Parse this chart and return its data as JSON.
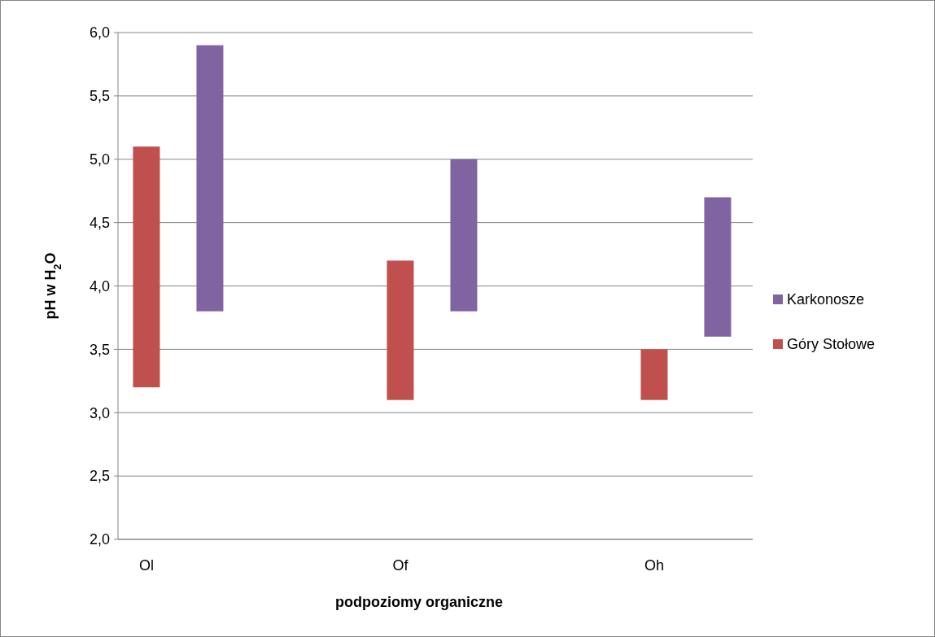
{
  "chart_data": {
    "type": "bar",
    "xlabel": "podpoziomy organiczne",
    "ylabel": "pH w H$_{2}$O",
    "categories": [
      "Ol",
      "Of",
      "Oh"
    ],
    "series": [
      {
        "name": "Góry Stołowe",
        "color": "#c0504d",
        "base": [
          3.2,
          3.1,
          3.1
        ],
        "values": [
          1.9,
          1.1,
          0.4
        ]
      },
      {
        "name": "Karkonosze",
        "color": "#8064a2",
        "base": [
          3.8,
          3.8,
          3.6
        ],
        "values": [
          2.1,
          1.2,
          1.1
        ]
      }
    ],
    "ylim": [
      2,
      6
    ],
    "yticks": [
      {
        "value": 2,
        "label": "2,0"
      },
      {
        "value": 2.5,
        "label": "2,5"
      },
      {
        "value": 3,
        "label": "3,0"
      },
      {
        "value": 3.5,
        "label": "3,5"
      },
      {
        "value": 4,
        "label": "4,0"
      },
      {
        "value": 4.5,
        "label": "4,5"
      },
      {
        "value": 5,
        "label": "5,0"
      },
      {
        "value": 5.5,
        "label": "5,5"
      },
      {
        "value": 6,
        "label": "6,0"
      }
    ],
    "grid": "y",
    "legend": "right"
  }
}
